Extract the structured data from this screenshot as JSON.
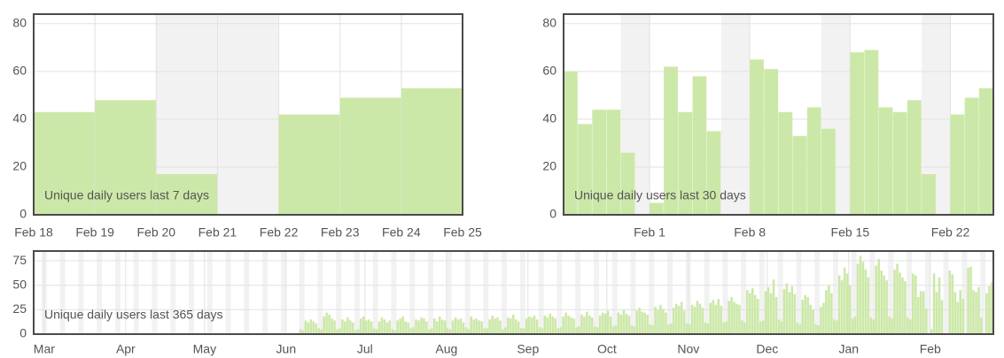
{
  "chart_data": [
    {
      "type": "bar",
      "title": "Unique daily users last 7 days",
      "color": "#cce8a8",
      "weekend_color": "#f2f2f2",
      "weekend_start": 2,
      "grid": true,
      "values": [
        43,
        48,
        17,
        0,
        42,
        49,
        53
      ],
      "xlim": [
        0,
        7
      ],
      "xticks": [
        {
          "value": 0,
          "label": "Feb 18"
        },
        {
          "value": 1,
          "label": "Feb 19"
        },
        {
          "value": 2,
          "label": "Feb 20"
        },
        {
          "value": 3,
          "label": "Feb 21"
        },
        {
          "value": 4,
          "label": "Feb 22"
        },
        {
          "value": 5,
          "label": "Feb 23"
        },
        {
          "value": 6,
          "label": "Feb 24"
        },
        {
          "value": 7,
          "label": "Feb 25"
        }
      ],
      "ylim": [
        0,
        84
      ],
      "yticks": [
        0,
        20,
        40,
        60,
        80
      ]
    },
    {
      "type": "bar",
      "title": "Unique daily users last 30 days",
      "color": "#cce8a8",
      "weekend_color": "#f2f2f2",
      "weekend_start": 4,
      "grid": true,
      "values": [
        60,
        38,
        44,
        44,
        26,
        0,
        5,
        62,
        43,
        58,
        35,
        0,
        0,
        65,
        61,
        43,
        33,
        45,
        36,
        0,
        68,
        69,
        45,
        43,
        48,
        17,
        0,
        42,
        49,
        53
      ],
      "xlim": [
        0,
        30
      ],
      "xticks": [
        {
          "value": 6,
          "label": "Feb 1"
        },
        {
          "value": 13,
          "label": "Feb 8"
        },
        {
          "value": 20,
          "label": "Feb 15"
        },
        {
          "value": 27,
          "label": "Feb 22"
        }
      ],
      "ylim": [
        0,
        84
      ],
      "yticks": [
        0,
        20,
        40,
        60,
        80
      ]
    },
    {
      "type": "bar",
      "title": "Unique daily users last 365 days",
      "color": "#cce8a8",
      "weekend_color": "#f2f2f2",
      "weekend_start": 3,
      "grid": true,
      "values": [
        0,
        0,
        0,
        0,
        0,
        0,
        0,
        0,
        0,
        0,
        0,
        0,
        0,
        0,
        0,
        0,
        0,
        0,
        0,
        0,
        0,
        0,
        0,
        0,
        0,
        0,
        0,
        0,
        0,
        0,
        0,
        0,
        0,
        0,
        0,
        0,
        0,
        0,
        0,
        0,
        0,
        0,
        0,
        0,
        0,
        0,
        0,
        0,
        0,
        0,
        0,
        0,
        0,
        0,
        0,
        0,
        0,
        0,
        0,
        0,
        0,
        0,
        0,
        0,
        0,
        0,
        0,
        0,
        0,
        0,
        0,
        0,
        0,
        0,
        0,
        0,
        0,
        0,
        0,
        0,
        0,
        0,
        0,
        0,
        0,
        0,
        0,
        0,
        0,
        0,
        0,
        0,
        0,
        0,
        0,
        0,
        0,
        0,
        0,
        0,
        0,
        5,
        4,
        14,
        12,
        15,
        13,
        11,
        6,
        5,
        18,
        22,
        20,
        16,
        14,
        5,
        6,
        15,
        13,
        17,
        14,
        12,
        4,
        5,
        16,
        18,
        14,
        15,
        13,
        6,
        5,
        13,
        17,
        15,
        12,
        14,
        5,
        4,
        14,
        16,
        18,
        13,
        12,
        6,
        7,
        15,
        14,
        17,
        16,
        13,
        5,
        6,
        16,
        13,
        18,
        15,
        14,
        6,
        5,
        14,
        17,
        15,
        16,
        12,
        7,
        5,
        18,
        15,
        16,
        14,
        13,
        6,
        6,
        15,
        19,
        16,
        17,
        14,
        5,
        7,
        17,
        16,
        20,
        15,
        13,
        6,
        6,
        16,
        18,
        17,
        19,
        15,
        7,
        6,
        19,
        17,
        21,
        18,
        16,
        6,
        7,
        18,
        22,
        19,
        17,
        16,
        7,
        8,
        20,
        18,
        23,
        19,
        17,
        8,
        7,
        19,
        22,
        21,
        24,
        18,
        8,
        9,
        22,
        20,
        25,
        21,
        19,
        9,
        8,
        24,
        27,
        23,
        22,
        20,
        10,
        9,
        28,
        25,
        30,
        26,
        22,
        10,
        11,
        27,
        31,
        29,
        33,
        24,
        11,
        10,
        30,
        28,
        34,
        31,
        27,
        12,
        11,
        32,
        35,
        30,
        36,
        29,
        12,
        13,
        34,
        38,
        33,
        31,
        30,
        14,
        12,
        45,
        42,
        47,
        40,
        36,
        13,
        14,
        44,
        48,
        42,
        56,
        38,
        15,
        13,
        46,
        52,
        43,
        49,
        41,
        12,
        10,
        35,
        40,
        38,
        30,
        25,
        10,
        9,
        28,
        32,
        45,
        50,
        42,
        15,
        14,
        60,
        55,
        68,
        62,
        50,
        16,
        18,
        72,
        80,
        74,
        66,
        58,
        17,
        15,
        70,
        77,
        65,
        60,
        55,
        18,
        16,
        66,
        72,
        63,
        58,
        54,
        17,
        15,
        62,
        60,
        38,
        44,
        44,
        26,
        0,
        5,
        62,
        43,
        58,
        35,
        0,
        0,
        65,
        61,
        43,
        33,
        45,
        36,
        0,
        68,
        69,
        45,
        43,
        48,
        17,
        0,
        42,
        49,
        53
      ],
      "xlim": [
        0,
        365
      ],
      "xticks": [
        {
          "value": 4,
          "label": "Mar"
        },
        {
          "value": 35,
          "label": "Apr"
        },
        {
          "value": 65,
          "label": "May"
        },
        {
          "value": 96,
          "label": "Jun"
        },
        {
          "value": 126,
          "label": "Jul"
        },
        {
          "value": 157,
          "label": "Aug"
        },
        {
          "value": 188,
          "label": "Sep"
        },
        {
          "value": 218,
          "label": "Oct"
        },
        {
          "value": 249,
          "label": "Nov"
        },
        {
          "value": 279,
          "label": "Dec"
        },
        {
          "value": 310,
          "label": "Jan"
        },
        {
          "value": 341,
          "label": "Feb"
        }
      ],
      "ylim": [
        0,
        85
      ],
      "yticks": [
        0,
        25,
        50,
        75
      ]
    }
  ]
}
